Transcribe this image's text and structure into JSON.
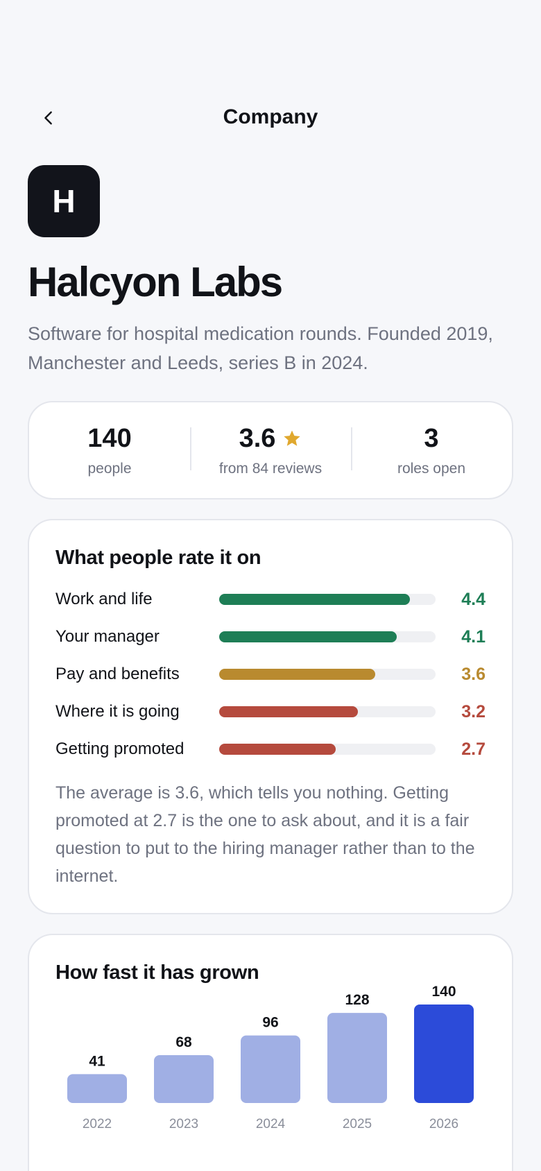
{
  "header": {
    "title": "Company",
    "back_icon": "chevron-left-icon"
  },
  "company": {
    "logo_letter": "H",
    "name": "Halcyon Labs",
    "description": "Software for hospital medication rounds. Founded 2019, Manchester and Leeds, series B in 2024."
  },
  "stats": {
    "people": {
      "value": "140",
      "label": "people"
    },
    "rating": {
      "value": "3.6",
      "label": "from 84 reviews",
      "icon": "star-icon"
    },
    "roles": {
      "value": "3",
      "label": "roles open"
    }
  },
  "ratings": {
    "title": "What people rate it on",
    "scale_max": 5,
    "items": [
      {
        "label": "Work and life",
        "value": "4.4",
        "color": "#1e7e56"
      },
      {
        "label": "Your manager",
        "value": "4.1",
        "color": "#1e7e56"
      },
      {
        "label": "Pay and benefits",
        "value": "3.6",
        "color": "#b98a2f"
      },
      {
        "label": "Where it is going",
        "value": "3.2",
        "color": "#b54a3d"
      },
      {
        "label": "Getting promoted",
        "value": "2.7",
        "color": "#b54a3d"
      }
    ],
    "note": "The average is 3.6, which tells you nothing. Getting promoted at 2.7 is the one to ask about, and it is a fair question to put to the hiring manager rather than to the internet."
  },
  "growth": {
    "title": "How fast it has grown",
    "caption": "",
    "colors": {
      "bar": "#a0afe4",
      "highlight": "#2c4bd9"
    }
  },
  "chart_data": {
    "type": "bar",
    "categories": [
      "2022",
      "2023",
      "2024",
      "2025",
      "2026"
    ],
    "values": [
      41,
      68,
      96,
      128,
      140
    ],
    "title": "How fast it has grown",
    "xlabel": "",
    "ylabel": "",
    "highlight_index": 4
  }
}
